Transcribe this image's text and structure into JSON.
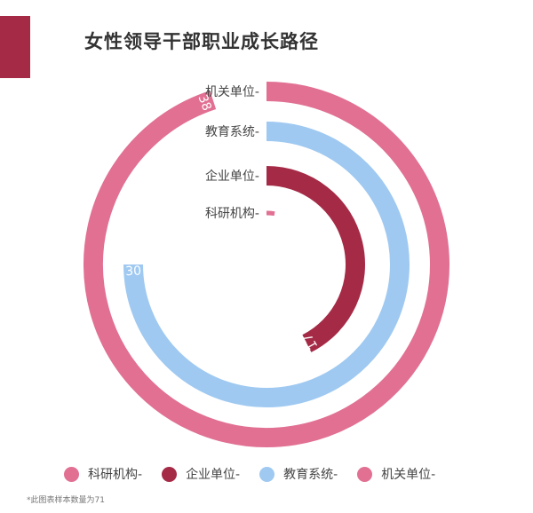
{
  "title": "女性领导干部职业成长路径",
  "note": "*此图表样本数量为71",
  "chart_data": {
    "type": "radial-bar",
    "title": "女性领导干部职业成长路径",
    "max": 40,
    "categories": [
      "机关单位-",
      "教育系统-",
      "企业单位-",
      "科研机构-"
    ],
    "values": [
      38,
      30,
      17,
      1
    ],
    "value_labels": [
      "38",
      "30",
      "17",
      ""
    ],
    "colors": [
      "#e17093",
      "#9fc9f1",
      "#a52a46",
      "#e17093"
    ],
    "legend": {
      "placement": "bottom",
      "items": [
        {
          "label": "科研机构-",
          "color": "#e17093"
        },
        {
          "label": "企业单位-",
          "color": "#a52a46"
        },
        {
          "label": "教育系统-",
          "color": "#9fc9f1"
        },
        {
          "label": "机关单位-",
          "color": "#e17093"
        }
      ]
    }
  }
}
